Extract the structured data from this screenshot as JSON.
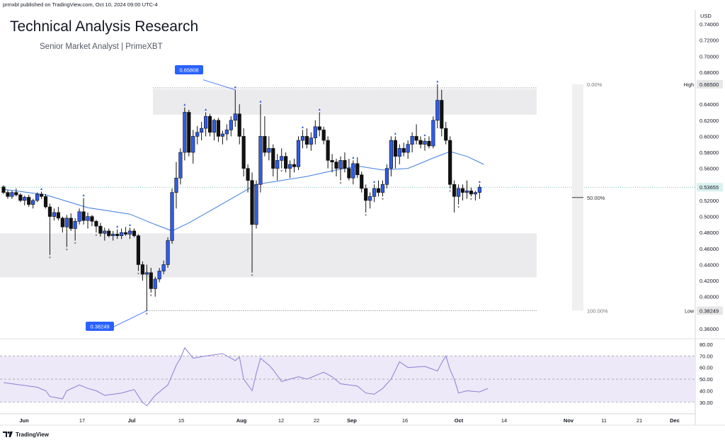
{
  "publisher_line": "prmxbt published on TradingView.com, Oct 10, 2024 09:00 UTC-4",
  "title": "Technical Analysis Research",
  "subtitle": "Senior Market Analyst | PrimeXBT",
  "currency": "USD",
  "footer_brand": "TradingView",
  "colors": {
    "bull": "#2f5ce6",
    "bear": "#111111",
    "ma": "#3d7fe0",
    "rsi": "#8b7fd4",
    "rsi_band": "#ede9f8",
    "zone": "#ebebed",
    "label_blue": "#2962ff"
  },
  "chart_data": {
    "type": "candlestick",
    "ylim": [
      0.36,
      0.74
    ],
    "y_ticks": [
      "0.74000",
      "0.72000",
      "0.70000",
      "0.68000",
      "0.66000",
      "0.64000",
      "0.62000",
      "0.60000",
      "0.58000",
      "0.56000",
      "0.54000",
      "0.52000",
      "0.50000",
      "0.48000",
      "0.46000",
      "0.44000",
      "0.42000",
      "0.40000",
      "0.38000",
      "0.36000"
    ],
    "x_ticks": [
      "Jun",
      "17",
      "Jul",
      "15",
      "Aug",
      "12",
      "22",
      "Sep",
      "16",
      "Oct",
      "14",
      "Nov",
      "11",
      "21",
      "Dec"
    ],
    "ohlc": [
      [
        0.537,
        0.539,
        0.528,
        0.53
      ],
      [
        0.53,
        0.533,
        0.522,
        0.525
      ],
      [
        0.525,
        0.532,
        0.522,
        0.53
      ],
      [
        0.53,
        0.535,
        0.525,
        0.527
      ],
      [
        0.527,
        0.529,
        0.518,
        0.52
      ],
      [
        0.52,
        0.526,
        0.514,
        0.524
      ],
      [
        0.524,
        0.527,
        0.512,
        0.515
      ],
      [
        0.515,
        0.522,
        0.51,
        0.52
      ],
      [
        0.52,
        0.53,
        0.518,
        0.528
      ],
      [
        0.528,
        0.531,
        0.522,
        0.525
      ],
      [
        0.525,
        0.528,
        0.51,
        0.512
      ],
      [
        0.512,
        0.516,
        0.452,
        0.5
      ],
      [
        0.5,
        0.51,
        0.495,
        0.505
      ],
      [
        0.505,
        0.512,
        0.495,
        0.498
      ],
      [
        0.498,
        0.5,
        0.48,
        0.487
      ],
      [
        0.487,
        0.502,
        0.462,
        0.498
      ],
      [
        0.498,
        0.504,
        0.482,
        0.485
      ],
      [
        0.485,
        0.498,
        0.47,
        0.494
      ],
      [
        0.494,
        0.51,
        0.49,
        0.506
      ],
      [
        0.506,
        0.523,
        0.49,
        0.495
      ],
      [
        0.495,
        0.505,
        0.485,
        0.5
      ],
      [
        0.5,
        0.502,
        0.488,
        0.494
      ],
      [
        0.494,
        0.496,
        0.48,
        0.488
      ],
      [
        0.488,
        0.492,
        0.475,
        0.479
      ],
      [
        0.479,
        0.486,
        0.47,
        0.482
      ],
      [
        0.482,
        0.485,
        0.474,
        0.476
      ],
      [
        0.476,
        0.482,
        0.47,
        0.478
      ],
      [
        0.478,
        0.484,
        0.472,
        0.476
      ],
      [
        0.476,
        0.485,
        0.472,
        0.48
      ],
      [
        0.48,
        0.487,
        0.476,
        0.478
      ],
      [
        0.478,
        0.486,
        0.472,
        0.482
      ],
      [
        0.482,
        0.485,
        0.474,
        0.476
      ],
      [
        0.476,
        0.478,
        0.432,
        0.44
      ],
      [
        0.44,
        0.444,
        0.42,
        0.428
      ],
      [
        0.428,
        0.44,
        0.382,
        0.43
      ],
      [
        0.43,
        0.436,
        0.405,
        0.41
      ],
      [
        0.41,
        0.425,
        0.4,
        0.422
      ],
      [
        0.422,
        0.436,
        0.418,
        0.432
      ],
      [
        0.432,
        0.445,
        0.428,
        0.44
      ],
      [
        0.44,
        0.474,
        0.436,
        0.47
      ],
      [
        0.47,
        0.535,
        0.466,
        0.53
      ],
      [
        0.53,
        0.568,
        0.51,
        0.548
      ],
      [
        0.548,
        0.585,
        0.54,
        0.58
      ],
      [
        0.58,
        0.636,
        0.57,
        0.63
      ],
      [
        0.63,
        0.633,
        0.575,
        0.58
      ],
      [
        0.58,
        0.608,
        0.566,
        0.6
      ],
      [
        0.6,
        0.613,
        0.59,
        0.605
      ],
      [
        0.605,
        0.618,
        0.595,
        0.61
      ],
      [
        0.61,
        0.63,
        0.6,
        0.625
      ],
      [
        0.625,
        0.628,
        0.6,
        0.605
      ],
      [
        0.605,
        0.622,
        0.595,
        0.62
      ],
      [
        0.62,
        0.623,
        0.593,
        0.6
      ],
      [
        0.6,
        0.607,
        0.59,
        0.603
      ],
      [
        0.603,
        0.615,
        0.595,
        0.608
      ],
      [
        0.608,
        0.625,
        0.6,
        0.62
      ],
      [
        0.62,
        0.658,
        0.612,
        0.628
      ],
      [
        0.628,
        0.64,
        0.59,
        0.6
      ],
      [
        0.6,
        0.61,
        0.55,
        0.56
      ],
      [
        0.56,
        0.565,
        0.53,
        0.545
      ],
      [
        0.545,
        0.555,
        0.43,
        0.49
      ],
      [
        0.49,
        0.545,
        0.485,
        0.54
      ],
      [
        0.54,
        0.64,
        0.53,
        0.6
      ],
      [
        0.6,
        0.625,
        0.575,
        0.58
      ],
      [
        0.58,
        0.6,
        0.57,
        0.585
      ],
      [
        0.585,
        0.59,
        0.55,
        0.56
      ],
      [
        0.56,
        0.578,
        0.545,
        0.57
      ],
      [
        0.57,
        0.585,
        0.56,
        0.575
      ],
      [
        0.575,
        0.58,
        0.555,
        0.56
      ],
      [
        0.56,
        0.57,
        0.548,
        0.565
      ],
      [
        0.565,
        0.572,
        0.555,
        0.562
      ],
      [
        0.562,
        0.6,
        0.558,
        0.595
      ],
      [
        0.595,
        0.608,
        0.585,
        0.6
      ],
      [
        0.6,
        0.61,
        0.585,
        0.59
      ],
      [
        0.59,
        0.605,
        0.582,
        0.598
      ],
      [
        0.598,
        0.62,
        0.59,
        0.612
      ],
      [
        0.612,
        0.63,
        0.6,
        0.608
      ],
      [
        0.608,
        0.612,
        0.59,
        0.595
      ],
      [
        0.595,
        0.6,
        0.56,
        0.57
      ],
      [
        0.57,
        0.578,
        0.555,
        0.568
      ],
      [
        0.568,
        0.572,
        0.55,
        0.56
      ],
      [
        0.56,
        0.575,
        0.545,
        0.57
      ],
      [
        0.57,
        0.58,
        0.555,
        0.56
      ],
      [
        0.56,
        0.572,
        0.545,
        0.548
      ],
      [
        0.548,
        0.57,
        0.54,
        0.566
      ],
      [
        0.566,
        0.574,
        0.548,
        0.552
      ],
      [
        0.552,
        0.556,
        0.53,
        0.535
      ],
      [
        0.535,
        0.54,
        0.505,
        0.52
      ],
      [
        0.52,
        0.53,
        0.51,
        0.525
      ],
      [
        0.525,
        0.54,
        0.518,
        0.535
      ],
      [
        0.535,
        0.545,
        0.525,
        0.53
      ],
      [
        0.53,
        0.545,
        0.525,
        0.54
      ],
      [
        0.54,
        0.565,
        0.535,
        0.56
      ],
      [
        0.56,
        0.6,
        0.55,
        0.595
      ],
      [
        0.595,
        0.6,
        0.56,
        0.575
      ],
      [
        0.575,
        0.59,
        0.565,
        0.585
      ],
      [
        0.585,
        0.592,
        0.575,
        0.58
      ],
      [
        0.58,
        0.595,
        0.572,
        0.59
      ],
      [
        0.59,
        0.605,
        0.58,
        0.6
      ],
      [
        0.6,
        0.615,
        0.59,
        0.595
      ],
      [
        0.595,
        0.6,
        0.585,
        0.59
      ],
      [
        0.59,
        0.598,
        0.582,
        0.594
      ],
      [
        0.594,
        0.6,
        0.585,
        0.588
      ],
      [
        0.588,
        0.625,
        0.585,
        0.62
      ],
      [
        0.62,
        0.665,
        0.61,
        0.645
      ],
      [
        0.645,
        0.658,
        0.6,
        0.61
      ],
      [
        0.61,
        0.618,
        0.59,
        0.595
      ],
      [
        0.595,
        0.6,
        0.535,
        0.54
      ],
      [
        0.54,
        0.545,
        0.505,
        0.525
      ],
      [
        0.525,
        0.54,
        0.515,
        0.535
      ],
      [
        0.535,
        0.54,
        0.52,
        0.53
      ],
      [
        0.53,
        0.545,
        0.522,
        0.532
      ],
      [
        0.532,
        0.536,
        0.525,
        0.528
      ],
      [
        0.528,
        0.532,
        0.52,
        0.53
      ],
      [
        0.53,
        0.54,
        0.522,
        0.5365
      ]
    ],
    "moving_average": [
      [
        0,
        0.534
      ],
      [
        10,
        0.527
      ],
      [
        20,
        0.511
      ],
      [
        30,
        0.503
      ],
      [
        36,
        0.49
      ],
      [
        40,
        0.482
      ],
      [
        44,
        0.492
      ],
      [
        50,
        0.51
      ],
      [
        56,
        0.528
      ],
      [
        60,
        0.54
      ],
      [
        66,
        0.545
      ],
      [
        72,
        0.55
      ],
      [
        78,
        0.557
      ],
      [
        84,
        0.563
      ],
      [
        90,
        0.558
      ],
      [
        96,
        0.56
      ],
      [
        102,
        0.573
      ],
      [
        106,
        0.581
      ],
      [
        110,
        0.575
      ],
      [
        114,
        0.565
      ]
    ],
    "rsi": {
      "ylim": [
        25,
        80
      ],
      "ticks": [
        "80.00",
        "70.00",
        "60.00",
        "50.00",
        "40.00",
        "30.00"
      ],
      "levels": [
        70,
        50,
        30
      ],
      "values": [
        [
          0,
          47
        ],
        [
          4,
          45
        ],
        [
          8,
          43
        ],
        [
          10,
          40
        ],
        [
          11,
          35
        ],
        [
          14,
          33
        ],
        [
          15,
          40
        ],
        [
          18,
          45
        ],
        [
          20,
          42
        ],
        [
          22,
          40
        ],
        [
          24,
          36
        ],
        [
          28,
          38
        ],
        [
          31,
          41
        ],
        [
          33,
          30
        ],
        [
          34,
          27
        ],
        [
          36,
          36
        ],
        [
          39,
          45
        ],
        [
          41,
          62
        ],
        [
          42,
          68
        ],
        [
          43,
          77
        ],
        [
          45,
          68
        ],
        [
          48,
          70
        ],
        [
          52,
          72
        ],
        [
          55,
          66
        ],
        [
          56,
          69
        ],
        [
          57,
          50
        ],
        [
          59,
          40
        ],
        [
          60,
          55
        ],
        [
          61,
          68
        ],
        [
          63,
          62
        ],
        [
          64,
          58
        ],
        [
          66,
          48
        ],
        [
          70,
          52
        ],
        [
          72,
          50
        ],
        [
          76,
          56
        ],
        [
          78,
          52
        ],
        [
          80,
          46
        ],
        [
          84,
          44
        ],
        [
          86,
          38
        ],
        [
          88,
          37
        ],
        [
          90,
          42
        ],
        [
          92,
          50
        ],
        [
          94,
          65
        ],
        [
          96,
          60
        ],
        [
          100,
          61
        ],
        [
          103,
          57
        ],
        [
          104,
          64
        ],
        [
          105,
          70
        ],
        [
          106,
          58
        ],
        [
          107,
          50
        ],
        [
          108,
          38
        ],
        [
          110,
          40
        ],
        [
          113,
          39
        ],
        [
          115,
          42
        ]
      ]
    },
    "annotations": {
      "high_label": "High",
      "high_value": "0.66500",
      "low_label": "Low",
      "low_value": "0.38249",
      "current_price": "0.53655",
      "callout_high": "0.65808",
      "callout_low": "0.38249",
      "fib_0": "0.00%",
      "fib_50": "50.00%",
      "fib_100": "100.00%",
      "resistance_zone": [
        0.627,
        0.659
      ],
      "support_zone": [
        0.424,
        0.479
      ]
    }
  }
}
